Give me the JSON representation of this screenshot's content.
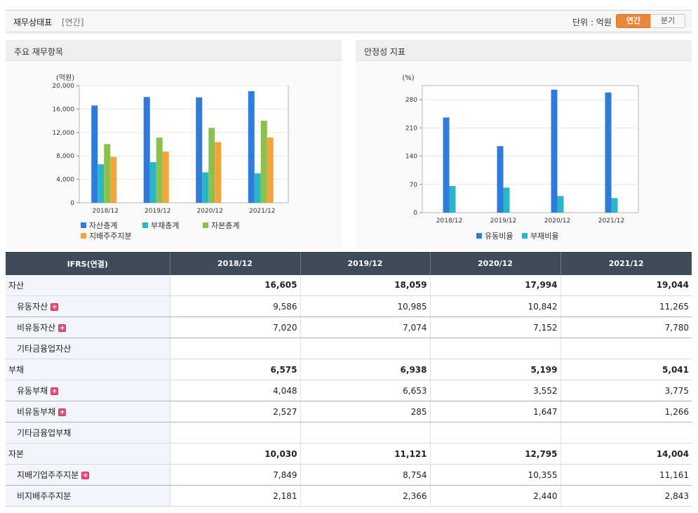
{
  "header": {
    "title": "재무상태표",
    "subtitle": "[연간]",
    "unit_label": "단위 : 억원",
    "tab_annual": "연간",
    "tab_quarter": "분기"
  },
  "panels": {
    "left_title": "주요 재무항목",
    "right_title": "안정성 지표"
  },
  "chart_data": [
    {
      "type": "bar",
      "title": "주요 재무항목",
      "ylabel": "(억원)",
      "categories": [
        "2018/12",
        "2019/12",
        "2020/12",
        "2021/12"
      ],
      "ylim": [
        0,
        20000
      ],
      "yticks": [
        "0",
        "4,000",
        "8,000",
        "12,000",
        "16,000",
        "20,000"
      ],
      "series": [
        {
          "name": "자산총계",
          "color": "#2f7bdc",
          "values": [
            16605,
            18059,
            17994,
            19044
          ]
        },
        {
          "name": "부채총계",
          "color": "#28b7c7",
          "values": [
            6575,
            6938,
            5199,
            5041
          ]
        },
        {
          "name": "자본총계",
          "color": "#8cc04c",
          "values": [
            10030,
            11121,
            12795,
            14004
          ]
        },
        {
          "name": "지배주주지분",
          "color": "#f5a43a",
          "values": [
            7849,
            8754,
            10355,
            11161
          ]
        }
      ],
      "grid": true,
      "legend": "bottom"
    },
    {
      "type": "bar",
      "title": "안정성 지표",
      "ylabel": "(%)",
      "categories": [
        "2018/12",
        "2019/12",
        "2020/12",
        "2021/12"
      ],
      "ylim": [
        0,
        315
      ],
      "yticks": [
        "0",
        "70",
        "140",
        "210",
        "280"
      ],
      "series": [
        {
          "name": "유동비율",
          "color": "#2f7bdc",
          "values": [
            236,
            165,
            305,
            298
          ]
        },
        {
          "name": "부채비율",
          "color": "#28b7c7",
          "values": [
            66,
            62,
            41,
            36
          ]
        }
      ],
      "grid": true,
      "legend": "bottom"
    }
  ],
  "table": {
    "header": [
      "IFRS(연결)",
      "2018/12",
      "2019/12",
      "2020/12",
      "2021/12"
    ],
    "rows": [
      {
        "label": "자산",
        "level": "major",
        "plus": false,
        "values": [
          "16,605",
          "18,059",
          "17,994",
          "19,044"
        ]
      },
      {
        "label": "유동자산",
        "level": "sub",
        "plus": true,
        "values": [
          "9,586",
          "10,985",
          "10,842",
          "11,265"
        ]
      },
      {
        "label": "비유동자산",
        "level": "sub",
        "plus": true,
        "values": [
          "7,020",
          "7,074",
          "7,152",
          "7,780"
        ]
      },
      {
        "label": "기타금융업자산",
        "level": "sub",
        "plus": false,
        "values": [
          "",
          "",
          "",
          ""
        ]
      },
      {
        "label": "부채",
        "level": "major",
        "plus": false,
        "values": [
          "6,575",
          "6,938",
          "5,199",
          "5,041"
        ]
      },
      {
        "label": "유동부채",
        "level": "sub",
        "plus": true,
        "values": [
          "4,048",
          "6,653",
          "3,552",
          "3,775"
        ]
      },
      {
        "label": "비유동부채",
        "level": "sub",
        "plus": true,
        "values": [
          "2,527",
          "285",
          "1,647",
          "1,266"
        ]
      },
      {
        "label": "기타금융업부채",
        "level": "sub",
        "plus": false,
        "values": [
          "",
          "",
          "",
          ""
        ]
      },
      {
        "label": "자본",
        "level": "major",
        "plus": false,
        "values": [
          "10,030",
          "11,121",
          "12,795",
          "14,004"
        ]
      },
      {
        "label": "지배기업주주지분",
        "level": "sub",
        "plus": true,
        "values": [
          "7,849",
          "8,754",
          "10,355",
          "11,161"
        ]
      },
      {
        "label": "비지배주주지분",
        "level": "sub",
        "plus": false,
        "values": [
          "2,181",
          "2,366",
          "2,440",
          "2,843"
        ]
      }
    ],
    "plus_icon": "+"
  }
}
